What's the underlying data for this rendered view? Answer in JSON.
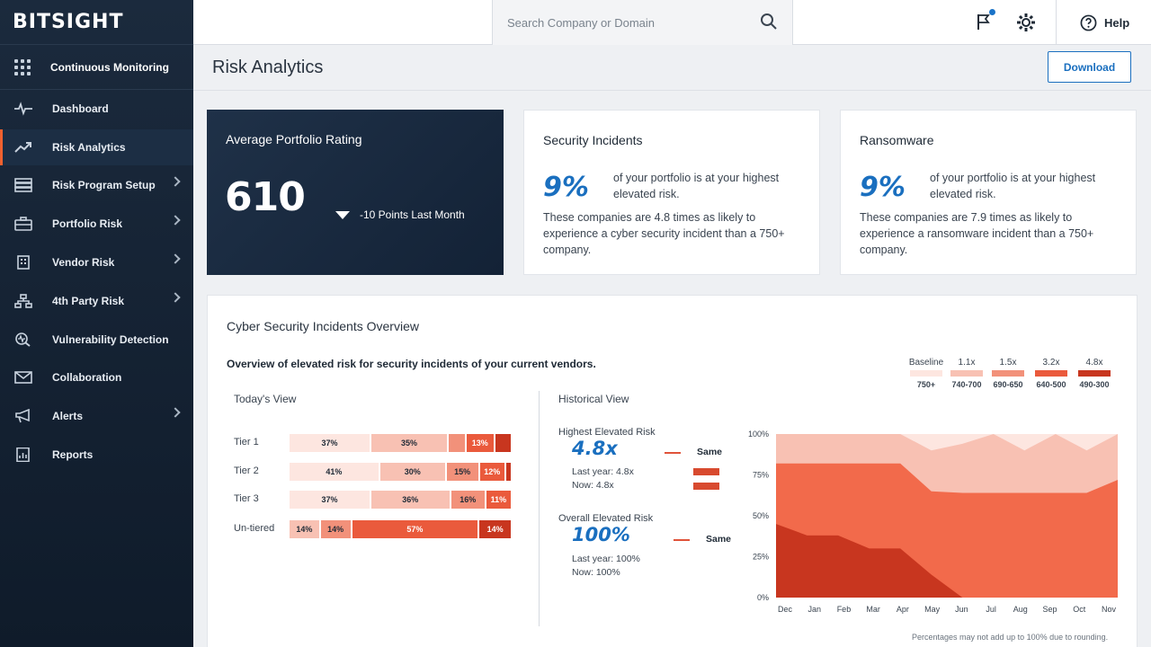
{
  "app": {
    "logo": "BITSIGHT"
  },
  "sidebar": {
    "section": "Continuous Monitoring",
    "items": [
      {
        "label": "Dashboard",
        "icon": "pulse-icon",
        "chevron": false
      },
      {
        "label": "Risk Analytics",
        "icon": "trend-icon",
        "chevron": false,
        "active": true
      },
      {
        "label": "Risk Program Setup",
        "icon": "stack-icon",
        "chevron": true
      },
      {
        "label": "Portfolio Risk",
        "icon": "briefcase-icon",
        "chevron": true
      },
      {
        "label": "Vendor Risk",
        "icon": "building-icon",
        "chevron": true
      },
      {
        "label": "4th Party Risk",
        "icon": "network-icon",
        "chevron": true
      },
      {
        "label": "Vulnerability Detection",
        "icon": "scan-icon",
        "chevron": false
      },
      {
        "label": "Collaboration",
        "icon": "mail-icon",
        "chevron": false
      },
      {
        "label": "Alerts",
        "icon": "megaphone-icon",
        "chevron": true
      },
      {
        "label": "Reports",
        "icon": "report-icon",
        "chevron": false
      }
    ]
  },
  "topbar": {
    "search_placeholder": "Search Company or Domain",
    "help_label": "Help"
  },
  "page": {
    "title": "Risk Analytics",
    "download_label": "Download"
  },
  "cards": {
    "rating": {
      "title": "Average Portfolio Rating",
      "value": "610",
      "delta": "-10 Points Last Month"
    },
    "incidents": {
      "title": "Security Incidents",
      "pct": "9%",
      "pct_desc": "of your portfolio is at your highest elevated risk.",
      "desc": "These companies are 4.8 times as likely to experience a cyber security incident than a 750+ company."
    },
    "ransomware": {
      "title": "Ransomware",
      "pct": "9%",
      "pct_desc": "of your portfolio is at your highest elevated risk.",
      "desc": "These companies are 7.9 times as likely to experience a ransomware incident than a 750+ company."
    }
  },
  "overview": {
    "title": "Cyber Security Incidents Overview",
    "subtitle": "Overview of elevated risk for security incidents of your current vendors.",
    "legend": [
      {
        "label": "Baseline",
        "range": "750+",
        "color": "#fde6e0"
      },
      {
        "label": "1.1x",
        "range": "740-700",
        "color": "#f8c1b3"
      },
      {
        "label": "1.5x",
        "range": "690-650",
        "color": "#f2917a"
      },
      {
        "label": "3.2x",
        "range": "640-500",
        "color": "#ea5a3c"
      },
      {
        "label": "4.8x",
        "range": "490-300",
        "color": "#c8361f"
      }
    ],
    "today_label": "Today's View",
    "historical_label": "Historical View",
    "tiers": [
      {
        "label": "Tier 1",
        "segments": [
          {
            "value": 37,
            "text": "37%",
            "tone": 0
          },
          {
            "value": 35,
            "text": "35%",
            "tone": 1
          },
          {
            "value": 8,
            "text": "",
            "tone": 2
          },
          {
            "value": 13,
            "text": "13%",
            "tone": 3
          },
          {
            "value": 7,
            "text": "",
            "tone": 4
          }
        ]
      },
      {
        "label": "Tier 2",
        "segments": [
          {
            "value": 41,
            "text": "41%",
            "tone": 0
          },
          {
            "value": 30,
            "text": "30%",
            "tone": 1
          },
          {
            "value": 15,
            "text": "15%",
            "tone": 2
          },
          {
            "value": 12,
            "text": "12%",
            "tone": 3
          },
          {
            "value": 2,
            "text": "",
            "tone": 4
          }
        ]
      },
      {
        "label": "Tier 3",
        "segments": [
          {
            "value": 37,
            "text": "37%",
            "tone": 0
          },
          {
            "value": 36,
            "text": "36%",
            "tone": 1
          },
          {
            "value": 16,
            "text": "16%",
            "tone": 2
          },
          {
            "value": 11,
            "text": "11%",
            "tone": 3
          }
        ]
      },
      {
        "label": "Un-tiered",
        "segments": [
          {
            "value": 14,
            "text": "14%",
            "tone": 1
          },
          {
            "value": 14,
            "text": "14%",
            "tone": 2
          },
          {
            "value": 57,
            "text": "57%",
            "tone": 3
          },
          {
            "value": 14,
            "text": "14%",
            "tone": 4
          }
        ]
      }
    ],
    "highest": {
      "label": "Highest Elevated Risk",
      "value": "4.8x",
      "status": "Same",
      "last_year": "Last year: 4.8x",
      "now": "Now: 4.8x"
    },
    "overall": {
      "label": "Overall Elevated Risk",
      "value": "100%",
      "status": "Same",
      "last_year": "Last year: 100%",
      "now": "Now: 100%"
    },
    "footnote": "Percentages may not add up to 100% due to rounding."
  },
  "chart_data": {
    "type": "area",
    "x": [
      "Dec",
      "Jan",
      "Feb",
      "Mar",
      "Apr",
      "May",
      "Jun",
      "Jul",
      "Aug",
      "Sep",
      "Oct",
      "Nov"
    ],
    "yticks": [
      "100%",
      "75%",
      "50%",
      "25%",
      "0%"
    ],
    "ylim": [
      0,
      100
    ],
    "stacked_percent": true,
    "series": [
      {
        "color": "#c8361f",
        "values": [
          45,
          38,
          38,
          30,
          30,
          14,
          0,
          0,
          0,
          0,
          0,
          0
        ]
      },
      {
        "color": "#ea5a3c",
        "values": [
          0,
          0,
          0,
          0,
          0,
          0,
          0,
          0,
          0,
          0,
          0,
          0
        ]
      },
      {
        "color": "#f26a4b",
        "values": [
          37,
          44,
          44,
          52,
          52,
          51,
          64,
          64,
          64,
          64,
          64,
          72
        ]
      },
      {
        "color": "#f8c1b3",
        "values": [
          18,
          18,
          18,
          18,
          18,
          25,
          36,
          36,
          36,
          36,
          36,
          28
        ]
      }
    ],
    "top_band": {
      "color": "#fde6e0",
      "values": [
        0,
        0,
        0,
        0,
        0,
        0,
        6,
        0,
        10,
        0,
        10,
        0
      ]
    }
  }
}
